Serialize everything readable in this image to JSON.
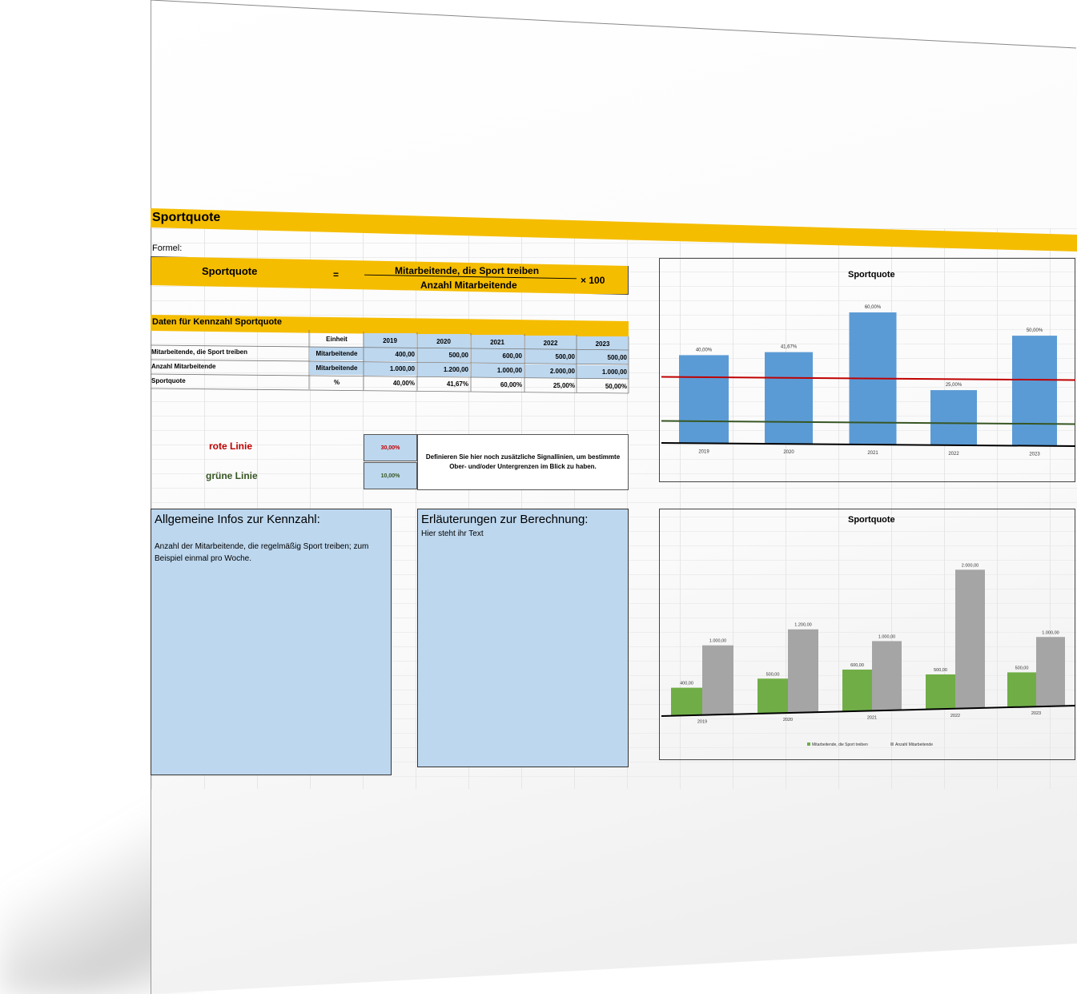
{
  "title": "Sportquote",
  "formula": {
    "label": "Formel:",
    "left": "Sportquote",
    "equals": "=",
    "numerator": "Mitarbeitende, die Sport treiben",
    "denominator": "Anzahl Mitarbeitende",
    "multiplier": "× 100"
  },
  "data_section": {
    "header": "Daten für Kennzahl Sportquote",
    "unit_header": "Einheit",
    "years": [
      "2019",
      "2020",
      "2021",
      "2022",
      "2023"
    ],
    "rows": [
      {
        "label": "Mitarbeitende, die Sport treiben",
        "unit": "Mitarbeitende",
        "values": [
          "400,00",
          "500,00",
          "600,00",
          "500,00",
          "500,00"
        ]
      },
      {
        "label": "Anzahl Mitarbeitende",
        "unit": "Mitarbeitende",
        "values": [
          "1.000,00",
          "1.200,00",
          "1.000,00",
          "2.000,00",
          "1.000,00"
        ]
      },
      {
        "label": "Sportquote",
        "unit": "%",
        "values": [
          "40,00%",
          "41,67%",
          "60,00%",
          "25,00%",
          "50,00%"
        ]
      }
    ]
  },
  "signals": {
    "red_label": "rote Linie",
    "red_value": "30,00%",
    "green_label": "grüne Linie",
    "green_value": "10,00%",
    "note": "Definieren Sie hier noch zusätzliche Signallinien, um bestimmte Ober- und/oder Untergrenzen im Blick zu haben.",
    "red_color": "#c00000",
    "green_color": "#375623"
  },
  "info": {
    "general_title": "Allgemeine Infos zur Kennzahl:",
    "general_text": "Anzahl der Mitarbeitende, die regelmäßig Sport treiben; zum Beispiel einmal pro Woche.",
    "calc_title": "Erläuterungen zur Berechnung:",
    "calc_text": "Hier steht ihr Text"
  },
  "chart_data": [
    {
      "type": "bar",
      "title": "Sportquote",
      "categories": [
        "2019",
        "2020",
        "2021",
        "2022",
        "2023"
      ],
      "values": [
        40.0,
        41.67,
        60.0,
        25.0,
        50.0
      ],
      "value_labels": [
        "40,00%",
        "41,67%",
        "60,00%",
        "25,00%",
        "50,00%"
      ],
      "ylim": [
        0,
        60
      ],
      "reference_lines": [
        {
          "value": 30,
          "color": "#c00000"
        },
        {
          "value": 10,
          "color": "#375623"
        }
      ],
      "bar_color": "#5b9bd5",
      "grid": false
    },
    {
      "type": "bar",
      "title": "Sportquote",
      "categories": [
        "2019",
        "2020",
        "2021",
        "2022",
        "2023"
      ],
      "series": [
        {
          "name": "Mitarbeitende, die Sport treiben",
          "values": [
            400,
            500,
            600,
            500,
            500
          ],
          "labels": [
            "400,00",
            "500,00",
            "600,00",
            "500,00",
            "500,00"
          ],
          "color": "#70ad47"
        },
        {
          "name": "Anzahl Mitarbeitende",
          "values": [
            1000,
            1200,
            1000,
            2000,
            1000
          ],
          "labels": [
            "1.000,00",
            "1.200,00",
            "1.000,00",
            "2.000,00",
            "1.000,00"
          ],
          "color": "#a5a5a5"
        }
      ],
      "ylim": [
        0,
        2000
      ],
      "legend": "bottom",
      "grid": false
    }
  ]
}
